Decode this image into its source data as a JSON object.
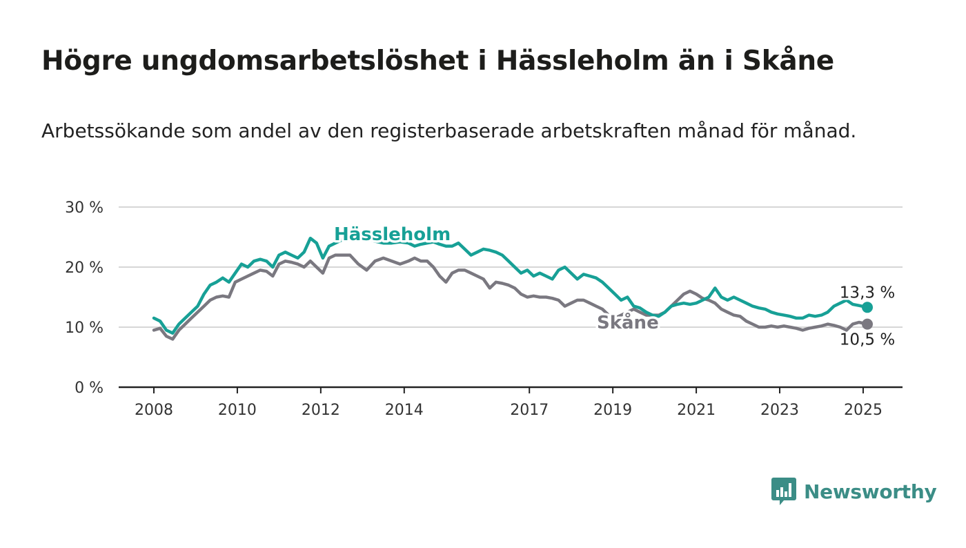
{
  "title": "Högre ungdomsarbetslöshet i Hässleholm än i Skåne",
  "subtitle": "Arbetssökande som andel av den registerbaserade arbetskraften månad för månad.",
  "brand": {
    "name": "Newsworthy",
    "color": "#3b8d86",
    "icon": "newsworthy-logo-icon"
  },
  "chart_data": {
    "type": "line",
    "ylim": [
      0,
      30
    ],
    "yticks": [
      0,
      10,
      20,
      30
    ],
    "ytick_labels": [
      "0 %",
      "10 %",
      "20 %",
      "30 %"
    ],
    "xlim": [
      2008.0,
      2025.1
    ],
    "xticks": [
      2008,
      2010,
      2012,
      2014,
      2017,
      2019,
      2021,
      2023,
      2025
    ],
    "xtick_labels": [
      "2008",
      "2010",
      "2012",
      "2014",
      "2017",
      "2019",
      "2021",
      "2023",
      "2025"
    ],
    "grid": true,
    "series": [
      {
        "name": "Hässleholm",
        "color": "#17a096",
        "end_label": "13,3 %",
        "x": [
          2008.0,
          2008.15,
          2008.3,
          2008.45,
          2008.6,
          2008.75,
          2008.9,
          2009.05,
          2009.2,
          2009.35,
          2009.5,
          2009.65,
          2009.8,
          2009.95,
          2010.1,
          2010.25,
          2010.4,
          2010.55,
          2010.7,
          2010.85,
          2011.0,
          2011.15,
          2011.3,
          2011.45,
          2011.6,
          2011.75,
          2011.9,
          2012.05,
          2012.2,
          2012.35,
          2012.5,
          2012.7,
          2012.9,
          2013.1,
          2013.3,
          2013.5,
          2013.7,
          2013.9,
          2014.1,
          2014.25,
          2014.4,
          2014.55,
          2014.7,
          2014.85,
          2015.0,
          2015.15,
          2015.3,
          2015.45,
          2015.6,
          2015.75,
          2015.9,
          2016.05,
          2016.2,
          2016.35,
          2016.5,
          2016.65,
          2016.8,
          2016.95,
          2017.1,
          2017.25,
          2017.4,
          2017.55,
          2017.7,
          2017.85,
          2018.0,
          2018.15,
          2018.3,
          2018.45,
          2018.6,
          2018.75,
          2018.9,
          2019.05,
          2019.2,
          2019.35,
          2019.5,
          2019.65,
          2019.8,
          2019.95,
          2020.1,
          2020.25,
          2020.4,
          2020.55,
          2020.7,
          2020.85,
          2021.0,
          2021.15,
          2021.3,
          2021.45,
          2021.6,
          2021.75,
          2021.9,
          2022.05,
          2022.2,
          2022.35,
          2022.5,
          2022.65,
          2022.8,
          2022.95,
          2023.1,
          2023.25,
          2023.4,
          2023.55,
          2023.7,
          2023.85,
          2024.0,
          2024.15,
          2024.3,
          2024.45,
          2024.6,
          2024.75,
          2024.9,
          2025.1
        ],
        "values": [
          11.5,
          11.0,
          9.5,
          9.0,
          10.5,
          11.5,
          12.5,
          13.5,
          15.5,
          17.0,
          17.5,
          18.2,
          17.5,
          19.0,
          20.5,
          20.0,
          21.0,
          21.3,
          21.0,
          20.0,
          22.0,
          22.5,
          22.0,
          21.5,
          22.5,
          24.8,
          24.0,
          21.5,
          23.5,
          24.0,
          24.5,
          25.0,
          25.5,
          24.8,
          24.3,
          24.0,
          24.0,
          24.2,
          24.0,
          23.5,
          23.8,
          24.0,
          24.2,
          23.8,
          23.5,
          23.5,
          24.0,
          23.0,
          22.0,
          22.5,
          23.0,
          22.8,
          22.5,
          22.0,
          21.0,
          20.0,
          19.0,
          19.5,
          18.5,
          19.0,
          18.5,
          18.0,
          19.5,
          20.0,
          19.0,
          18.0,
          18.8,
          18.5,
          18.2,
          17.5,
          16.5,
          15.5,
          14.5,
          15.0,
          13.5,
          13.2,
          12.5,
          12.0,
          11.8,
          12.5,
          13.5,
          13.8,
          14.0,
          13.8,
          14.0,
          14.5,
          15.0,
          16.5,
          15.0,
          14.5,
          15.0,
          14.5,
          14.0,
          13.5,
          13.2,
          13.0,
          12.5,
          12.2,
          12.0,
          11.8,
          11.5,
          11.5,
          12.0,
          11.8,
          12.0,
          12.5,
          13.5,
          14.0,
          14.5,
          13.8,
          13.6,
          13.3
        ]
      },
      {
        "name": "Skåne",
        "color": "#7a7880",
        "end_label": "10,5 %",
        "x": [
          2008.0,
          2008.15,
          2008.3,
          2008.45,
          2008.6,
          2008.75,
          2008.9,
          2009.05,
          2009.2,
          2009.35,
          2009.5,
          2009.65,
          2009.8,
          2009.95,
          2010.1,
          2010.25,
          2010.4,
          2010.55,
          2010.7,
          2010.85,
          2011.0,
          2011.15,
          2011.3,
          2011.45,
          2011.6,
          2011.75,
          2011.9,
          2012.05,
          2012.2,
          2012.35,
          2012.5,
          2012.7,
          2012.9,
          2013.1,
          2013.3,
          2013.5,
          2013.7,
          2013.9,
          2014.1,
          2014.25,
          2014.4,
          2014.55,
          2014.7,
          2014.85,
          2015.0,
          2015.15,
          2015.3,
          2015.45,
          2015.6,
          2015.75,
          2015.9,
          2016.05,
          2016.2,
          2016.35,
          2016.5,
          2016.65,
          2016.8,
          2016.95,
          2017.1,
          2017.25,
          2017.4,
          2017.55,
          2017.7,
          2017.85,
          2018.0,
          2018.15,
          2018.3,
          2018.45,
          2018.6,
          2018.75,
          2018.9,
          2019.05,
          2019.2,
          2019.35,
          2019.5,
          2019.65,
          2019.8,
          2019.95,
          2020.1,
          2020.25,
          2020.4,
          2020.55,
          2020.7,
          2020.85,
          2021.0,
          2021.15,
          2021.3,
          2021.45,
          2021.6,
          2021.75,
          2021.9,
          2022.05,
          2022.2,
          2022.35,
          2022.5,
          2022.65,
          2022.8,
          2022.95,
          2023.1,
          2023.25,
          2023.4,
          2023.55,
          2023.7,
          2023.85,
          2024.0,
          2024.15,
          2024.3,
          2024.45,
          2024.6,
          2024.75,
          2024.9,
          2025.1
        ],
        "values": [
          9.5,
          9.8,
          8.5,
          8.0,
          9.5,
          10.5,
          11.5,
          12.5,
          13.5,
          14.5,
          15.0,
          15.2,
          15.0,
          17.5,
          18.0,
          18.5,
          19.0,
          19.5,
          19.3,
          18.5,
          20.5,
          21.0,
          20.8,
          20.5,
          20.0,
          21.0,
          20.0,
          19.0,
          21.5,
          22.0,
          22.0,
          22.0,
          20.5,
          19.5,
          21.0,
          21.5,
          21.0,
          20.5,
          21.0,
          21.5,
          21.0,
          21.0,
          20.0,
          18.5,
          17.5,
          19.0,
          19.5,
          19.5,
          19.0,
          18.5,
          18.0,
          16.5,
          17.5,
          17.3,
          17.0,
          16.5,
          15.5,
          15.0,
          15.2,
          15.0,
          15.0,
          14.8,
          14.5,
          13.5,
          14.0,
          14.5,
          14.5,
          14.0,
          13.5,
          13.0,
          12.0,
          11.5,
          12.0,
          12.5,
          13.0,
          12.5,
          12.0,
          12.0,
          12.0,
          12.5,
          13.5,
          14.5,
          15.5,
          16.0,
          15.5,
          14.8,
          14.5,
          14.0,
          13.0,
          12.5,
          12.0,
          11.8,
          11.0,
          10.5,
          10.0,
          10.0,
          10.2,
          10.0,
          10.2,
          10.0,
          9.8,
          9.5,
          9.8,
          10.0,
          10.2,
          10.5,
          10.3,
          10.0,
          9.5,
          10.5,
          10.8,
          10.5
        ]
      }
    ]
  }
}
